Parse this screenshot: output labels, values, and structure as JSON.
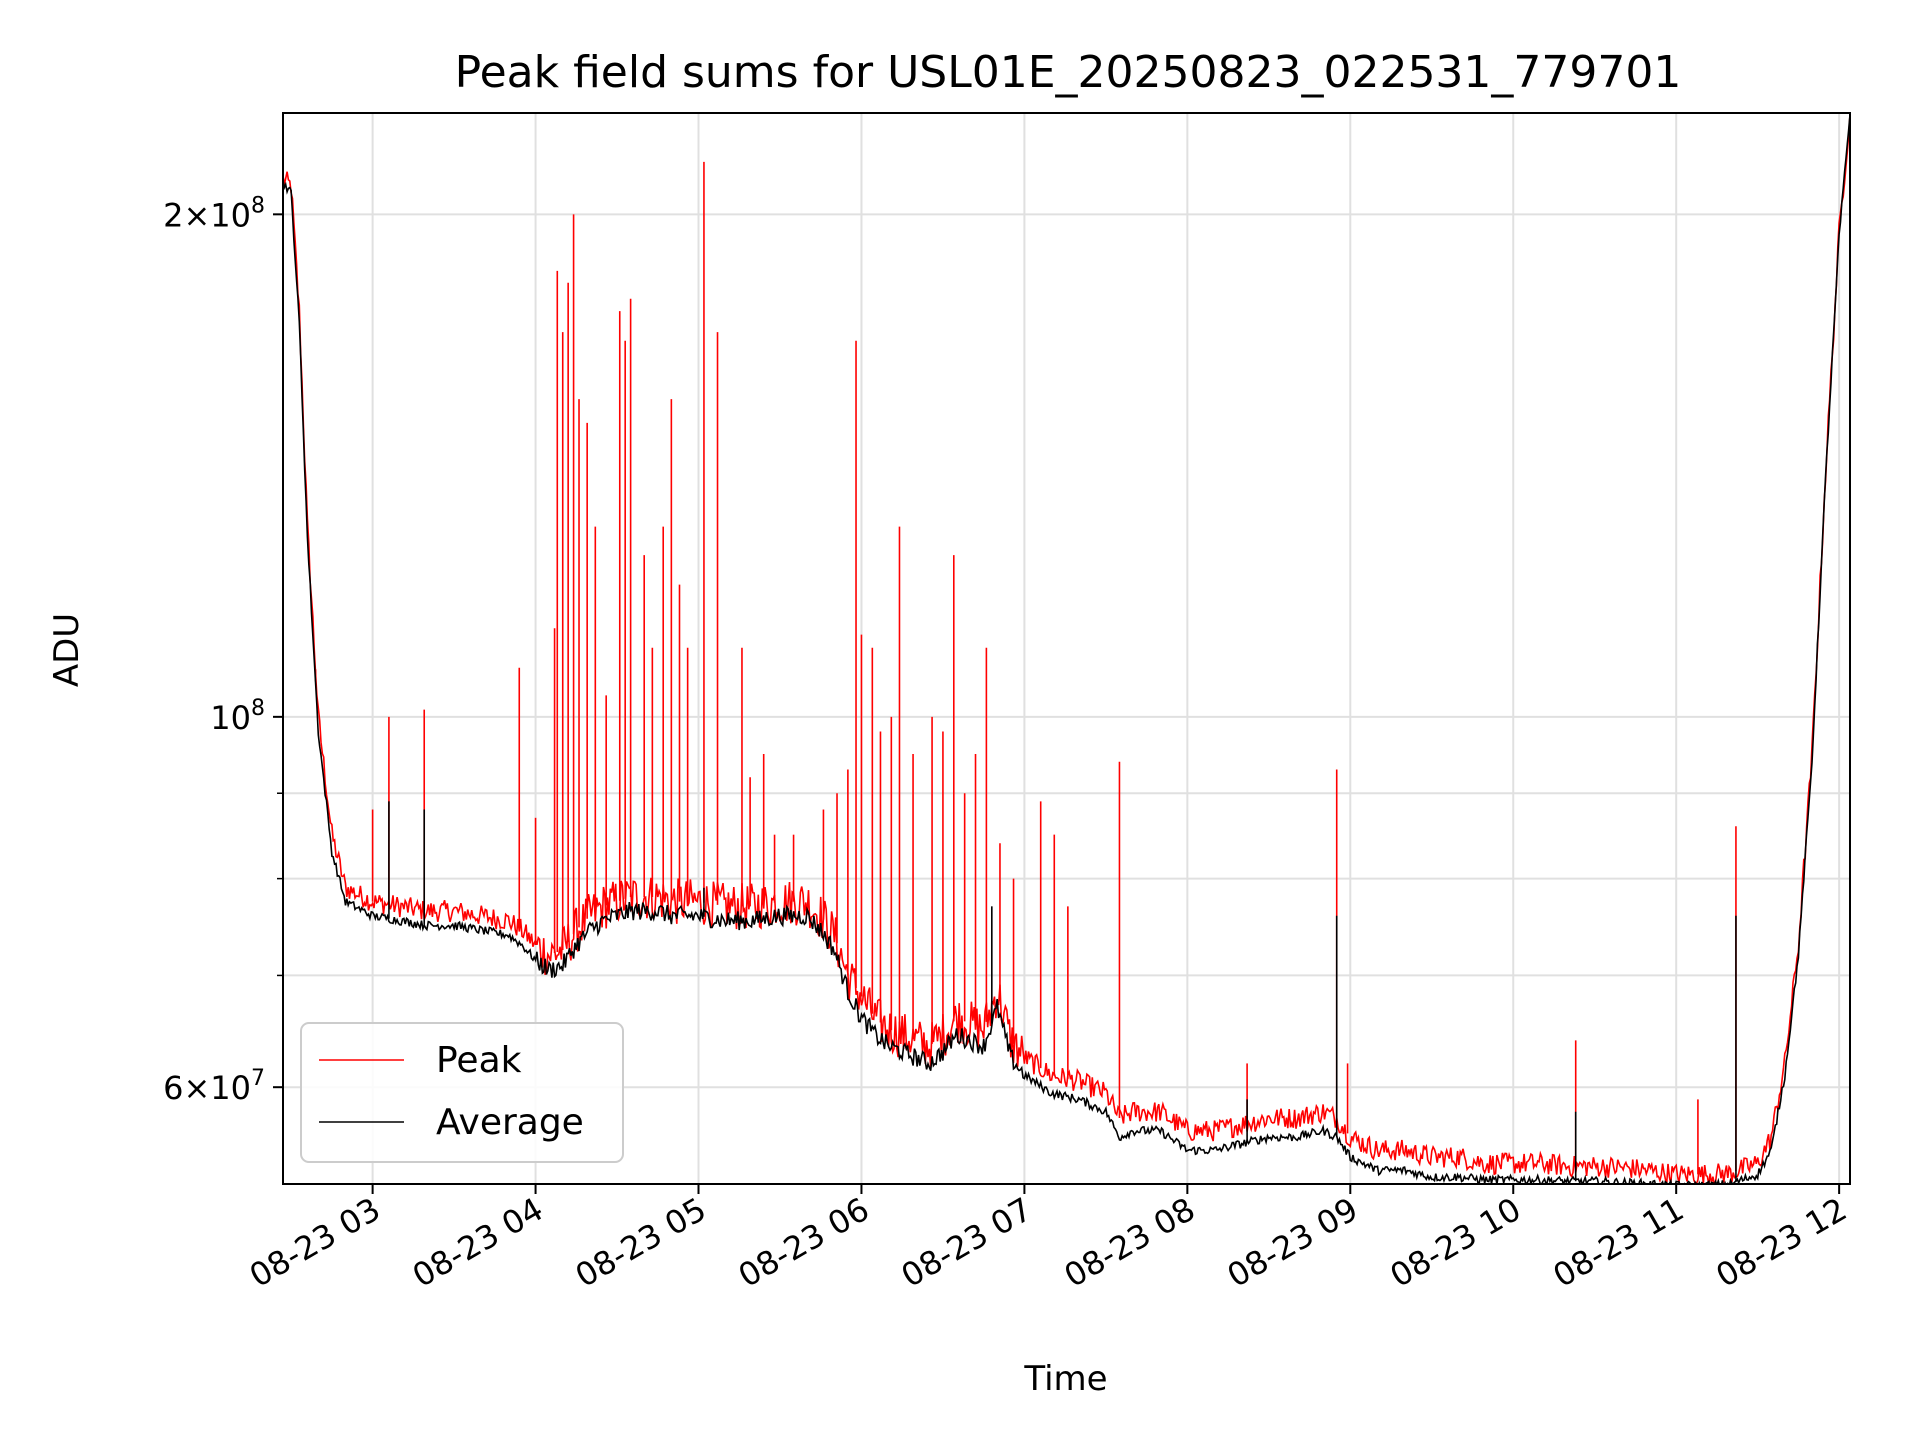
{
  "chart_data": {
    "type": "line",
    "title": "Peak field sums for USL01E_20250823_022531_779701",
    "xlabel": "Time",
    "ylabel": "ADU",
    "y_scale": "log",
    "xlim": [
      "08-23 02:27",
      "08-23 12:04"
    ],
    "ylim": [
      52500000,
      230000000
    ],
    "grid": true,
    "legend": {
      "position": "lower-left",
      "entries": [
        "Peak",
        "Average"
      ]
    },
    "x_ticks": [
      "08-23 03",
      "08-23 04",
      "08-23 05",
      "08-23 06",
      "08-23 07",
      "08-23 08",
      "08-23 09",
      "08-23 10",
      "08-23 11",
      "08-23 12"
    ],
    "y_ticks": [
      {
        "label_base": "2×10",
        "label_exp": "8",
        "value": 200000000
      },
      {
        "label_base": "10",
        "label_exp": "8",
        "value": 100000000
      },
      {
        "label_base": "6×10",
        "label_exp": "7",
        "value": 60000000
      }
    ],
    "y_minor_ticks": [
      70000000,
      80000000,
      90000000
    ],
    "series": [
      {
        "name": "Peak",
        "color": "#ff0000",
        "x": [
          "02:27",
          "02:30",
          "02:33",
          "02:36",
          "02:40",
          "02:45",
          "02:50",
          "03:00",
          "03:10",
          "03:20",
          "03:30",
          "03:40",
          "03:50",
          "03:55",
          "04:00",
          "04:05",
          "04:10",
          "04:15",
          "04:20",
          "04:25",
          "04:30",
          "04:35",
          "04:40",
          "04:45",
          "04:50",
          "04:55",
          "05:00",
          "05:10",
          "05:20",
          "05:30",
          "05:40",
          "05:45",
          "05:50",
          "05:55",
          "06:00",
          "06:05",
          "06:10",
          "06:15",
          "06:20",
          "06:25",
          "06:30",
          "06:35",
          "06:40",
          "06:45",
          "06:48",
          "06:50",
          "06:55",
          "07:00",
          "07:10",
          "07:20",
          "07:30",
          "07:35",
          "07:40",
          "07:50",
          "08:00",
          "08:10",
          "08:20",
          "08:30",
          "08:40",
          "08:50",
          "08:55",
          "09:00",
          "09:05",
          "09:10",
          "09:20",
          "09:30",
          "09:40",
          "09:50",
          "10:00",
          "10:10",
          "10:20",
          "10:30",
          "10:40",
          "10:50",
          "11:00",
          "11:10",
          "11:20",
          "11:30",
          "11:35",
          "11:40",
          "11:45",
          "11:50",
          "11:55",
          "12:00",
          "12:04"
        ],
        "y": [
          210000000,
          208000000,
          175000000,
          130000000,
          100000000,
          85000000,
          79000000,
          77500000,
          77000000,
          76500000,
          76500000,
          76000000,
          75500000,
          74500000,
          73000000,
          72000000,
          72500000,
          74500000,
          76000000,
          77000000,
          77500000,
          78000000,
          78000000,
          78000000,
          77500000,
          77500000,
          77500000,
          77000000,
          77000000,
          77500000,
          77500000,
          76000000,
          74000000,
          70000000,
          68000000,
          66000000,
          65000000,
          64500000,
          64000000,
          63500000,
          64500000,
          66000000,
          65500000,
          65000000,
          67000000,
          68500000,
          64000000,
          62500000,
          61000000,
          60500000,
          59500000,
          57500000,
          58000000,
          58000000,
          56500000,
          56500000,
          57000000,
          57500000,
          57500000,
          58000000,
          57500000,
          56000000,
          55500000,
          55000000,
          55000000,
          54500000,
          54500000,
          54000000,
          54000000,
          54000000,
          53800000,
          53800000,
          53700000,
          53500000,
          53200000,
          53200000,
          53300000,
          54000000,
          56000000,
          62000000,
          73000000,
          95000000,
          140000000,
          195000000,
          230000000
        ],
        "spikes": [
          {
            "x": "02:39",
            "y": 105000000
          },
          {
            "x": "03:00",
            "y": 88000000
          },
          {
            "x": "03:06",
            "y": 100000000
          },
          {
            "x": "03:19",
            "y": 101000000
          },
          {
            "x": "03:54",
            "y": 107000000
          },
          {
            "x": "04:00",
            "y": 87000000
          },
          {
            "x": "04:07",
            "y": 113000000
          },
          {
            "x": "04:08",
            "y": 185000000
          },
          {
            "x": "04:10",
            "y": 170000000
          },
          {
            "x": "04:12",
            "y": 182000000
          },
          {
            "x": "04:14",
            "y": 200000000
          },
          {
            "x": "04:16",
            "y": 155000000
          },
          {
            "x": "04:19",
            "y": 150000000
          },
          {
            "x": "04:22",
            "y": 130000000
          },
          {
            "x": "04:26",
            "y": 103000000
          },
          {
            "x": "04:31",
            "y": 175000000
          },
          {
            "x": "04:33",
            "y": 168000000
          },
          {
            "x": "04:35",
            "y": 178000000
          },
          {
            "x": "04:40",
            "y": 125000000
          },
          {
            "x": "04:43",
            "y": 110000000
          },
          {
            "x": "04:47",
            "y": 130000000
          },
          {
            "x": "04:50",
            "y": 155000000
          },
          {
            "x": "04:53",
            "y": 120000000
          },
          {
            "x": "04:56",
            "y": 110000000
          },
          {
            "x": "05:02",
            "y": 215000000
          },
          {
            "x": "05:07",
            "y": 170000000
          },
          {
            "x": "05:16",
            "y": 110000000
          },
          {
            "x": "05:19",
            "y": 92000000
          },
          {
            "x": "05:24",
            "y": 95000000
          },
          {
            "x": "05:28",
            "y": 85000000
          },
          {
            "x": "05:35",
            "y": 85000000
          },
          {
            "x": "05:46",
            "y": 88000000
          },
          {
            "x": "05:51",
            "y": 90000000
          },
          {
            "x": "05:55",
            "y": 93000000
          },
          {
            "x": "05:58",
            "y": 168000000
          },
          {
            "x": "06:00",
            "y": 112000000
          },
          {
            "x": "06:04",
            "y": 110000000
          },
          {
            "x": "06:07",
            "y": 98000000
          },
          {
            "x": "06:11",
            "y": 100000000
          },
          {
            "x": "06:14",
            "y": 130000000
          },
          {
            "x": "06:19",
            "y": 95000000
          },
          {
            "x": "06:26",
            "y": 100000000
          },
          {
            "x": "06:30",
            "y": 98000000
          },
          {
            "x": "06:34",
            "y": 125000000
          },
          {
            "x": "06:38",
            "y": 90000000
          },
          {
            "x": "06:42",
            "y": 95000000
          },
          {
            "x": "06:46",
            "y": 110000000
          },
          {
            "x": "06:51",
            "y": 84000000
          },
          {
            "x": "06:56",
            "y": 80000000
          },
          {
            "x": "07:06",
            "y": 89000000
          },
          {
            "x": "07:11",
            "y": 85000000
          },
          {
            "x": "07:16",
            "y": 77000000
          },
          {
            "x": "07:35",
            "y": 94000000
          },
          {
            "x": "08:22",
            "y": 62000000
          },
          {
            "x": "08:55",
            "y": 93000000
          },
          {
            "x": "08:59",
            "y": 62000000
          },
          {
            "x": "10:23",
            "y": 64000000
          },
          {
            "x": "11:08",
            "y": 59000000
          },
          {
            "x": "11:22",
            "y": 86000000
          }
        ]
      },
      {
        "name": "Average",
        "color": "#000000",
        "x": [
          "02:27",
          "02:30",
          "02:33",
          "02:36",
          "02:40",
          "02:45",
          "02:50",
          "03:00",
          "03:10",
          "03:20",
          "03:30",
          "03:40",
          "03:50",
          "03:55",
          "04:00",
          "04:05",
          "04:10",
          "04:15",
          "04:20",
          "04:25",
          "04:30",
          "04:35",
          "04:40",
          "04:45",
          "04:50",
          "04:55",
          "05:00",
          "05:10",
          "05:20",
          "05:30",
          "05:40",
          "05:45",
          "05:50",
          "05:55",
          "06:00",
          "06:05",
          "06:10",
          "06:15",
          "06:20",
          "06:25",
          "06:30",
          "06:35",
          "06:40",
          "06:45",
          "06:48",
          "06:50",
          "06:55",
          "07:00",
          "07:10",
          "07:20",
          "07:30",
          "07:35",
          "07:40",
          "07:50",
          "08:00",
          "08:10",
          "08:20",
          "08:30",
          "08:40",
          "08:50",
          "08:55",
          "09:00",
          "09:05",
          "09:10",
          "09:20",
          "09:30",
          "09:40",
          "09:50",
          "10:00",
          "10:10",
          "10:20",
          "10:30",
          "10:40",
          "10:50",
          "11:00",
          "11:10",
          "11:20",
          "11:30",
          "11:35",
          "11:40",
          "11:45",
          "11:50",
          "11:55",
          "12:00",
          "12:04"
        ],
        "y": [
          209000000,
          206000000,
          172000000,
          128000000,
          98000000,
          83000000,
          77500000,
          76000000,
          75500000,
          75000000,
          75000000,
          74500000,
          74000000,
          73000000,
          71500000,
          70500000,
          71000000,
          73000000,
          74500000,
          75500000,
          76000000,
          76500000,
          76500000,
          76500000,
          76000000,
          76000000,
          76000000,
          75500000,
          75500000,
          76000000,
          76000000,
          74500000,
          72500000,
          68500000,
          66000000,
          64500000,
          63500000,
          63000000,
          62500000,
          62000000,
          63000000,
          64500000,
          64000000,
          63500000,
          65500000,
          67000000,
          62500000,
          61000000,
          59500000,
          59000000,
          58000000,
          56000000,
          56500000,
          56500000,
          55000000,
          55000000,
          55500000,
          56000000,
          56000000,
          56500000,
          56000000,
          54500000,
          54000000,
          53500000,
          53500000,
          53000000,
          53000000,
          52800000,
          52800000,
          52800000,
          52700000,
          52700000,
          52600000,
          52500000,
          52400000,
          52400000,
          52500000,
          53200000,
          55000000,
          61000000,
          72000000,
          94000000,
          139000000,
          194000000,
          230000000
        ],
        "spikes": [
          {
            "x": "03:06",
            "y": 89000000
          },
          {
            "x": "03:19",
            "y": 88000000
          },
          {
            "x": "05:02",
            "y": 79000000
          },
          {
            "x": "06:48",
            "y": 77000000
          },
          {
            "x": "08:55",
            "y": 76000000
          },
          {
            "x": "08:22",
            "y": 59000000
          },
          {
            "x": "10:23",
            "y": 58000000
          },
          {
            "x": "11:22",
            "y": 76000000
          }
        ]
      }
    ]
  }
}
